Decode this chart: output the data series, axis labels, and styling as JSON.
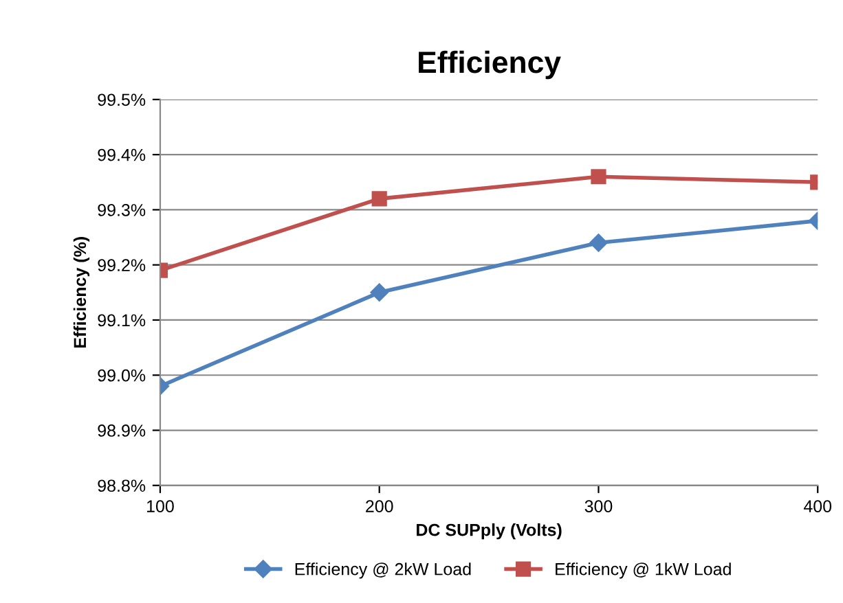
{
  "chart_data": {
    "type": "line",
    "title": "Efficiency",
    "xlabel": "DC SUPply (Volts)",
    "ylabel": "Efficiency (%)",
    "x": [
      100,
      200,
      300,
      400
    ],
    "series": [
      {
        "name": "Efficiency @ 2kW Load",
        "color": "#4f81bd",
        "marker": "diamond",
        "values": [
          98.98,
          99.15,
          99.24,
          99.28
        ]
      },
      {
        "name": "Efficiency @ 1kW Load",
        "color": "#c0504d",
        "marker": "square",
        "values": [
          99.19,
          99.32,
          99.36,
          99.35
        ]
      }
    ],
    "xlim": [
      100,
      400
    ],
    "xticks": [
      100,
      200,
      300,
      400
    ],
    "ylim": [
      98.8,
      99.5
    ],
    "yticks": [
      {
        "value": 98.8,
        "label": "98.8%"
      },
      {
        "value": 98.9,
        "label": "98.9%"
      },
      {
        "value": 99.0,
        "label": "99.0%"
      },
      {
        "value": 99.1,
        "label": "99.1%"
      },
      {
        "value": 99.2,
        "label": "99.2%"
      },
      {
        "value": 99.3,
        "label": "99.3%"
      },
      {
        "value": 99.4,
        "label": "99.4%"
      },
      {
        "value": 99.5,
        "label": "99.5%"
      }
    ],
    "grid": "y",
    "legend": "bottom",
    "line_style": "solid"
  }
}
